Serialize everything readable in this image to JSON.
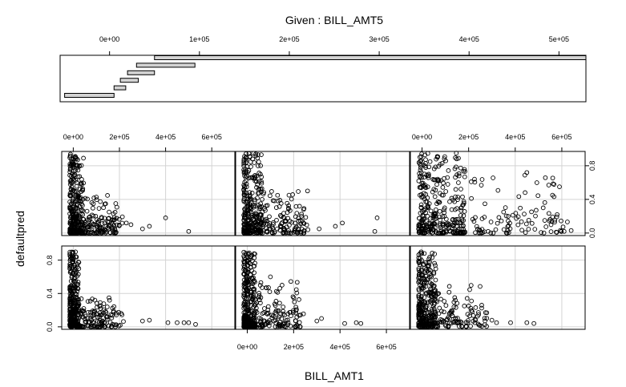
{
  "chart_data": {
    "type": "scatter",
    "subtype": "coplot",
    "given": {
      "title": "Given : BILL_AMT5",
      "tick_labels": [
        "0e+00",
        "1e+05",
        "2e+05",
        "3e+05",
        "4e+05",
        "5e+05"
      ],
      "tick_values": [
        0,
        100000,
        200000,
        300000,
        400000,
        500000
      ],
      "xlim": [
        -55000,
        530000
      ],
      "intervals": [
        [
          -50000,
          5000
        ],
        [
          5000,
          18000
        ],
        [
          12000,
          32000
        ],
        [
          20000,
          50000
        ],
        [
          30000,
          95000
        ],
        [
          50000,
          530000
        ]
      ]
    },
    "xlabel": "BILL_AMT1",
    "ylabel": "defaultpred",
    "x_tick_labels": [
      "0e+00",
      "2e+05",
      "4e+05",
      "6e+05"
    ],
    "x_tick_values": [
      0,
      200000,
      400000,
      600000
    ],
    "y_tick_labels": [
      "0.0",
      "0.4",
      "0.8"
    ],
    "y_tick_values": [
      0,
      0.4,
      0.8
    ],
    "xlim": [
      -50000,
      700000
    ],
    "ylim": [
      -0.03,
      0.97
    ],
    "grid": true,
    "panels": [
      {
        "row": "top",
        "col": 1,
        "given_interval": 3,
        "dense_xmax": 60000,
        "dense_ymax": 0.95,
        "spread_xmax": 200000,
        "spread_ymax": 0.45,
        "outliers": [
          [
            400000,
            0.18
          ],
          [
            500000,
            0.02
          ],
          [
            300000,
            0.05
          ],
          [
            330000,
            0.08
          ],
          [
            250000,
            0.1
          ],
          [
            230000,
            0.12
          ]
        ]
      },
      {
        "row": "top",
        "col": 2,
        "given_interval": 4,
        "dense_xmax": 80000,
        "dense_ymax": 0.95,
        "spread_xmax": 250000,
        "spread_ymax": 0.5,
        "outliers": [
          [
            560000,
            0.18
          ],
          [
            550000,
            0.02
          ],
          [
            310000,
            0.05
          ],
          [
            260000,
            0.5
          ],
          [
            180000,
            0.45
          ],
          [
            410000,
            0.12
          ],
          [
            380000,
            0.08
          ]
        ]
      },
      {
        "row": "top",
        "col": 3,
        "given_interval": 5,
        "dense_xmax": 200000,
        "dense_ymax": 0.95,
        "spread_xmax": 600000,
        "spread_ymax": 0.7,
        "outliers": [
          [
            590000,
            0.55
          ],
          [
            560000,
            0.45
          ],
          [
            610000,
            0.02
          ],
          [
            640000,
            0.03
          ],
          [
            450000,
            0.72
          ],
          [
            580000,
            0.22
          ],
          [
            520000,
            0.3
          ]
        ]
      },
      {
        "row": "bottom",
        "col": 1,
        "given_interval": 0,
        "dense_xmax": 40000,
        "dense_ymax": 0.9,
        "spread_xmax": 200000,
        "spread_ymax": 0.35,
        "outliers": [
          [
            410000,
            0.05
          ],
          [
            450000,
            0.05
          ],
          [
            480000,
            0.05
          ],
          [
            500000,
            0.05
          ],
          [
            530000,
            0.03
          ],
          [
            300000,
            0.07
          ],
          [
            330000,
            0.08
          ]
        ]
      },
      {
        "row": "bottom",
        "col": 2,
        "given_interval": 1,
        "dense_xmax": 50000,
        "dense_ymax": 0.9,
        "spread_xmax": 230000,
        "spread_ymax": 0.55,
        "outliers": [
          [
            470000,
            0.05
          ],
          [
            490000,
            0.04
          ],
          [
            420000,
            0.04
          ],
          [
            300000,
            0.07
          ],
          [
            320000,
            0.1
          ],
          [
            100000,
            0.6
          ],
          [
            150000,
            0.5
          ]
        ]
      },
      {
        "row": "bottom",
        "col": 3,
        "given_interval": 2,
        "dense_xmax": 80000,
        "dense_ymax": 0.9,
        "spread_xmax": 260000,
        "spread_ymax": 0.5,
        "outliers": [
          [
            380000,
            0.05
          ],
          [
            450000,
            0.05
          ],
          [
            480000,
            0.04
          ],
          [
            300000,
            0.08
          ],
          [
            320000,
            0.05
          ],
          [
            200000,
            0.25
          ]
        ]
      }
    ]
  }
}
